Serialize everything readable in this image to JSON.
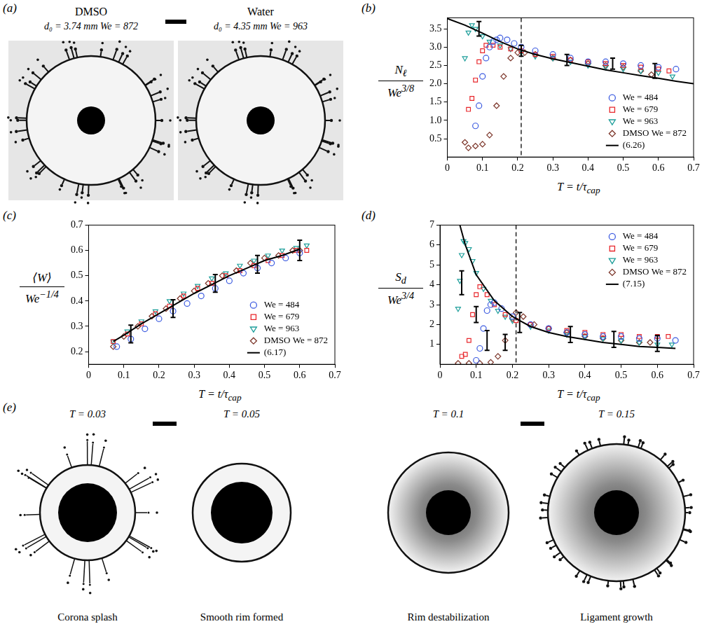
{
  "photos": {
    "a": {
      "panel": "(a)",
      "images": [
        {
          "title": "DMSO",
          "caption": "d₀ = 3.74 mm  We = 872"
        },
        {
          "title": "Water",
          "caption": "d₀ = 4.35 mm  We = 963"
        }
      ]
    },
    "e": {
      "panel": "(e)",
      "images": [
        {
          "time": "T = 0.03",
          "caption": "Corona splash"
        },
        {
          "time": "T = 0.05",
          "caption": "Smooth rim formed"
        },
        {
          "time": "T = 0.1",
          "caption": "Rim destabilization"
        },
        {
          "time": "T = 0.15",
          "caption": "Ligament growth"
        }
      ]
    }
  },
  "chart_data": [
    {
      "panel": "(b)",
      "type": "scatter",
      "xlabel": "T = t/τ",
      "xlabel_sub": "cap",
      "ylabel": {
        "numerator": "N",
        "numerator_sub": "ℓ",
        "denominator": "We",
        "denominator_sup": "3/8"
      },
      "xlim": [
        0,
        0.7
      ],
      "xticks": [
        0,
        0.1,
        0.2,
        0.3,
        0.4,
        0.5,
        0.6,
        0.7
      ],
      "ylim": [
        0,
        3.8
      ],
      "yticks": [
        0.5,
        {
          "value": 1,
          "label": "1.0"
        },
        1.5,
        {
          "value": 2,
          "label": "2.0"
        },
        2.5,
        {
          "value": 3,
          "label": "3.0"
        },
        3.5
      ],
      "legend": "lower right",
      "vline": 0.21,
      "series": [
        {
          "name": "We = 484",
          "color": "#3d5ce0",
          "marker": "circle",
          "x": [
            0.08,
            0.09,
            0.1,
            0.11,
            0.12,
            0.13,
            0.14,
            0.15,
            0.17,
            0.19,
            0.21,
            0.25,
            0.3,
            0.35,
            0.4,
            0.45,
            0.5,
            0.55,
            0.6,
            0.65
          ],
          "values": [
            0.85,
            1.4,
            2.2,
            2.7,
            3.0,
            3.15,
            3.2,
            3.25,
            3.2,
            3.1,
            3.0,
            2.9,
            2.8,
            2.7,
            2.6,
            2.6,
            2.55,
            2.5,
            2.45,
            2.4
          ]
        },
        {
          "name": "We = 679",
          "color": "#e8262b",
          "marker": "square",
          "x": [
            0.06,
            0.07,
            0.08,
            0.09,
            0.1,
            0.11,
            0.13,
            0.15,
            0.18,
            0.21,
            0.25,
            0.3,
            0.35,
            0.4,
            0.45,
            0.5,
            0.55,
            0.6,
            0.63
          ],
          "values": [
            1.3,
            1.6,
            2.1,
            2.6,
            2.9,
            3.05,
            3.05,
            3.0,
            2.95,
            2.9,
            2.8,
            2.75,
            2.65,
            2.6,
            2.55,
            2.5,
            2.45,
            2.4,
            2.35
          ]
        },
        {
          "name": "We = 963",
          "color": "#1d9e9a",
          "marker": "triangle_down",
          "x": [
            0.05,
            0.06,
            0.07,
            0.08,
            0.1,
            0.12,
            0.15,
            0.18,
            0.21,
            0.25,
            0.3,
            0.35,
            0.4,
            0.45,
            0.5,
            0.55,
            0.6,
            0.64
          ],
          "values": [
            2.7,
            3.4,
            3.6,
            3.5,
            3.3,
            3.15,
            3.05,
            2.95,
            2.85,
            2.75,
            2.7,
            2.6,
            2.5,
            2.45,
            2.4,
            2.35,
            2.3,
            2.2
          ]
        },
        {
          "name": "DMSO We = 872",
          "color": "#7b3428",
          "marker": "diamond",
          "x": [
            0.05,
            0.06,
            0.08,
            0.1,
            0.12,
            0.14,
            0.16,
            0.18,
            0.2,
            0.22,
            0.25,
            0.3,
            0.35,
            0.4,
            0.45,
            0.5,
            0.55,
            0.58
          ],
          "values": [
            0.4,
            0.25,
            0.3,
            0.35,
            0.6,
            1.4,
            2.2,
            2.7,
            2.85,
            2.85,
            2.8,
            2.7,
            2.65,
            2.55,
            2.5,
            2.45,
            2.35,
            2.25
          ]
        },
        {
          "name": "(6.26)",
          "color": "#000000",
          "type": "line",
          "line_style": "solid",
          "x": [
            0,
            0.05,
            0.1,
            0.15,
            0.2,
            0.25,
            0.3,
            0.35,
            0.4,
            0.45,
            0.5,
            0.55,
            0.6,
            0.65,
            0.7
          ],
          "values": [
            3.78,
            3.6,
            3.38,
            3.15,
            2.95,
            2.8,
            2.68,
            2.58,
            2.48,
            2.38,
            2.3,
            2.22,
            2.15,
            2.07,
            2.0
          ]
        }
      ],
      "error_bars": {
        "x": [
          0.09,
          0.21,
          0.34,
          0.47,
          0.59
        ],
        "y": [
          3.5,
          2.9,
          2.65,
          2.55,
          2.35
        ],
        "err": [
          0.2,
          0.15,
          0.15,
          0.15,
          0.2
        ]
      }
    },
    {
      "panel": "(c)",
      "type": "scatter",
      "xlabel": "T = t/τ",
      "xlabel_sub": "cap",
      "ylabel": {
        "numerator": "⟨W⟩",
        "denominator": "We",
        "denominator_sup": "−1/4"
      },
      "xlim": [
        0,
        0.7
      ],
      "xticks": [
        0,
        0.1,
        0.2,
        0.3,
        0.4,
        0.5,
        0.6,
        0.7
      ],
      "ylim": [
        0.15,
        0.7
      ],
      "yticks": [
        0.2,
        0.3,
        0.4,
        0.5,
        0.6,
        0.7
      ],
      "legend": "lower right",
      "series": [
        {
          "name": "We = 484",
          "color": "#3d5ce0",
          "marker": "circle",
          "x": [
            0.08,
            0.12,
            0.16,
            0.2,
            0.24,
            0.28,
            0.32,
            0.36,
            0.4,
            0.44,
            0.48,
            0.52,
            0.56,
            0.6
          ],
          "values": [
            0.22,
            0.25,
            0.29,
            0.33,
            0.36,
            0.39,
            0.42,
            0.45,
            0.48,
            0.51,
            0.53,
            0.55,
            0.57,
            0.59
          ]
        },
        {
          "name": "We = 679",
          "color": "#e8262b",
          "marker": "square",
          "x": [
            0.07,
            0.11,
            0.15,
            0.19,
            0.23,
            0.27,
            0.31,
            0.35,
            0.39,
            0.43,
            0.47,
            0.51,
            0.55,
            0.59,
            0.62
          ],
          "values": [
            0.24,
            0.27,
            0.31,
            0.35,
            0.38,
            0.42,
            0.45,
            0.47,
            0.5,
            0.52,
            0.54,
            0.56,
            0.58,
            0.6,
            0.6
          ]
        },
        {
          "name": "We = 963",
          "color": "#1d9e9a",
          "marker": "triangle_down",
          "x": [
            0.07,
            0.11,
            0.15,
            0.19,
            0.23,
            0.27,
            0.31,
            0.35,
            0.39,
            0.43,
            0.47,
            0.51,
            0.55,
            0.59,
            0.62
          ],
          "values": [
            0.24,
            0.28,
            0.32,
            0.36,
            0.4,
            0.43,
            0.46,
            0.49,
            0.51,
            0.54,
            0.56,
            0.58,
            0.6,
            0.61,
            0.62
          ]
        },
        {
          "name": "DMSO We = 872",
          "color": "#7b3428",
          "marker": "diamond",
          "x": [
            0.07,
            0.1,
            0.14,
            0.18,
            0.22,
            0.26,
            0.3,
            0.34,
            0.38,
            0.42,
            0.46,
            0.5,
            0.54,
            0.58,
            0.6
          ],
          "values": [
            0.22,
            0.26,
            0.3,
            0.34,
            0.37,
            0.41,
            0.44,
            0.47,
            0.5,
            0.52,
            0.55,
            0.57,
            0.58,
            0.6,
            0.6
          ]
        },
        {
          "name": "(6.17)",
          "color": "#000000",
          "type": "line",
          "line_style": "solid",
          "x": [
            0.07,
            0.1,
            0.15,
            0.2,
            0.25,
            0.3,
            0.35,
            0.4,
            0.45,
            0.5,
            0.55,
            0.6
          ],
          "values": [
            0.24,
            0.265,
            0.31,
            0.35,
            0.39,
            0.43,
            0.465,
            0.5,
            0.53,
            0.56,
            0.58,
            0.605
          ]
        }
      ],
      "error_bars": {
        "x": [
          0.12,
          0.24,
          0.36,
          0.48,
          0.6
        ],
        "y": [
          0.27,
          0.37,
          0.47,
          0.545,
          0.6
        ],
        "err": [
          0.035,
          0.035,
          0.035,
          0.035,
          0.04
        ]
      }
    },
    {
      "panel": "(d)",
      "type": "scatter",
      "xlabel": "T = t/τ",
      "xlabel_sub": "cap",
      "ylabel": {
        "numerator": "S",
        "numerator_sub": "d",
        "denominator": "We",
        "denominator_sup": "3/4"
      },
      "xlim": [
        0,
        0.7
      ],
      "xticks": [
        0,
        0.1,
        0.2,
        0.3,
        0.4,
        0.5,
        0.6,
        0.7
      ],
      "ylim": [
        0,
        7
      ],
      "yticks": [
        1,
        2,
        3,
        4,
        5,
        6,
        7
      ],
      "legend": "upper right",
      "vline": 0.21,
      "series": [
        {
          "name": "We = 484",
          "color": "#3d5ce0",
          "marker": "circle",
          "x": [
            0.1,
            0.11,
            0.12,
            0.13,
            0.14,
            0.15,
            0.17,
            0.2,
            0.25,
            0.3,
            0.35,
            0.4,
            0.45,
            0.5,
            0.55,
            0.6,
            0.65
          ],
          "values": [
            0.2,
            0.8,
            1.8,
            2.7,
            3.0,
            3.1,
            2.8,
            2.4,
            2.0,
            1.8,
            1.6,
            1.5,
            1.4,
            1.4,
            1.3,
            1.3,
            1.2
          ]
        },
        {
          "name": "We = 679",
          "color": "#e8262b",
          "marker": "square",
          "x": [
            0.06,
            0.07,
            0.08,
            0.09,
            0.1,
            0.11,
            0.13,
            0.15,
            0.18,
            0.21,
            0.25,
            0.3,
            0.35,
            0.4,
            0.45,
            0.5,
            0.55,
            0.6,
            0.63
          ],
          "values": [
            0.4,
            0.5,
            1.2,
            2.5,
            3.5,
            3.9,
            3.5,
            3.0,
            2.5,
            2.2,
            2.0,
            1.8,
            1.7,
            1.6,
            1.5,
            1.5,
            1.4,
            1.4,
            1.4
          ]
        },
        {
          "name": "We = 963",
          "color": "#1d9e9a",
          "marker": "triangle_down",
          "x": [
            0.05,
            0.055,
            0.06,
            0.065,
            0.07,
            0.08,
            0.09,
            0.1,
            0.12,
            0.14,
            0.16,
            0.18,
            0.2,
            0.25,
            0.3,
            0.35,
            0.4,
            0.45,
            0.5,
            0.55,
            0.6,
            0.64
          ],
          "values": [
            2.8,
            4.2,
            5.5,
            6.2,
            6.1,
            5.8,
            5.2,
            4.6,
            3.8,
            3.2,
            2.7,
            2.4,
            2.2,
            1.9,
            1.7,
            1.5,
            1.4,
            1.3,
            1.2,
            1.1,
            1.0,
            1.0
          ]
        },
        {
          "name": "DMSO We = 872",
          "color": "#7b3428",
          "marker": "diamond",
          "x": [
            0.05,
            0.08,
            0.11,
            0.14,
            0.16,
            0.18,
            0.2,
            0.21,
            0.23,
            0.26,
            0.3,
            0.35,
            0.4,
            0.45,
            0.5,
            0.55,
            0.58
          ],
          "values": [
            0.05,
            0.05,
            0.05,
            0.1,
            0.4,
            1.2,
            2.3,
            2.6,
            2.4,
            2.0,
            1.8,
            1.6,
            1.4,
            1.3,
            1.2,
            1.1,
            1.1
          ]
        },
        {
          "name": "(7.15)",
          "color": "#000000",
          "type": "line",
          "line_style": "solid",
          "x": [
            0.055,
            0.07,
            0.1,
            0.15,
            0.2,
            0.25,
            0.3,
            0.35,
            0.4,
            0.45,
            0.5,
            0.55,
            0.6,
            0.65
          ],
          "values": [
            7.0,
            6.0,
            4.5,
            3.2,
            2.4,
            1.9,
            1.6,
            1.4,
            1.25,
            1.1,
            1.0,
            0.9,
            0.85,
            0.8
          ]
        }
      ],
      "error_bars": {
        "x": [
          0.06,
          0.1,
          0.13,
          0.18,
          0.22,
          0.36,
          0.48,
          0.6
        ],
        "y": [
          4.1,
          2.5,
          1.2,
          1.1,
          2.1,
          1.5,
          1.25,
          1.05
        ],
        "err": [
          0.6,
          0.4,
          0.5,
          0.4,
          0.5,
          0.4,
          0.4,
          0.4
        ]
      }
    }
  ]
}
